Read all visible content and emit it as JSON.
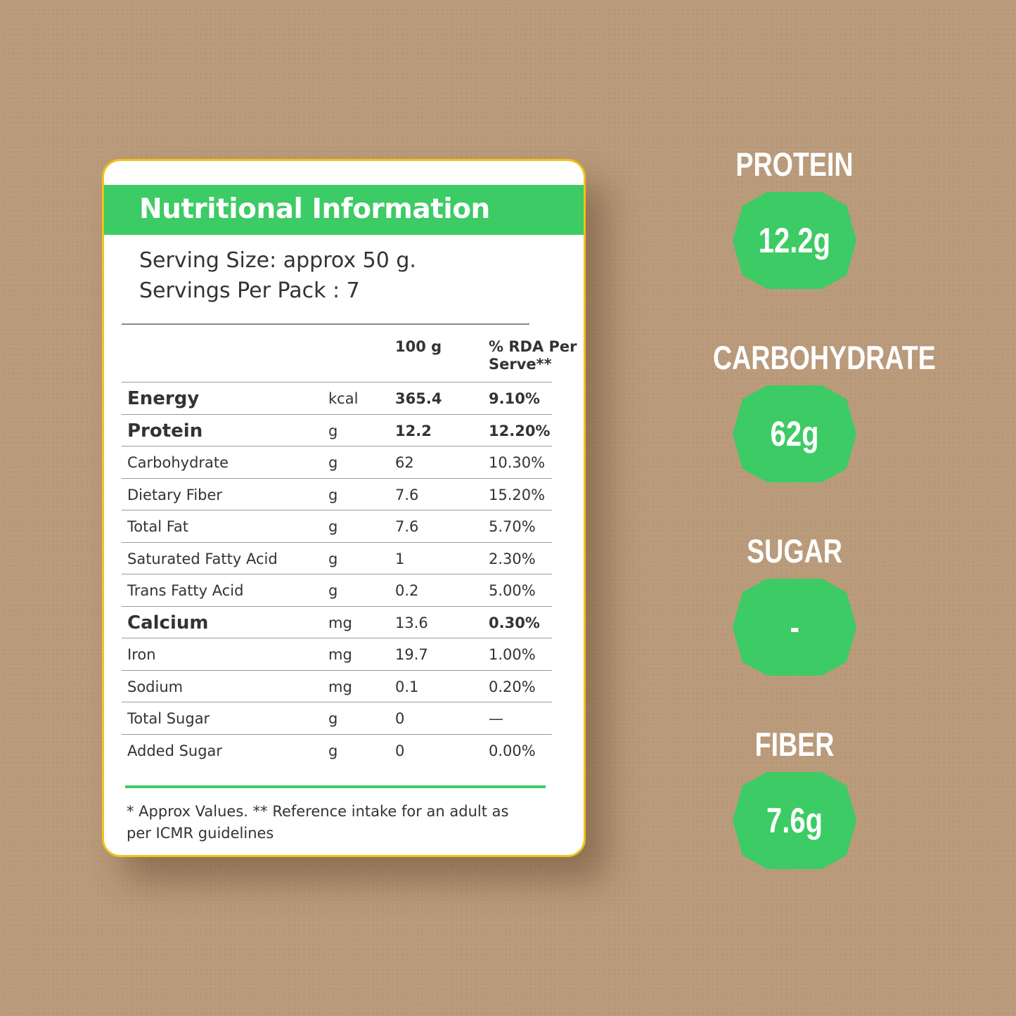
{
  "card": {
    "title": "Nutritional Information",
    "serving_size": "Serving Size: approx 50 g.",
    "servings_per_pack": "Servings Per Pack : 7",
    "col_qty": "100 g",
    "col_rda": "% RDA Per Serve**",
    "rows": [
      {
        "name": "Energy",
        "unit": "kcal",
        "qty": "365.4",
        "rda": "9.10%"
      },
      {
        "name": "Protein",
        "unit": "g",
        "qty": "12.2",
        "rda": "12.20%"
      },
      {
        "name": "Carbohydrate",
        "unit": "g",
        "qty": "62",
        "rda": "10.30%"
      },
      {
        "name": "Dietary Fiber",
        "unit": "g",
        "qty": "7.6",
        "rda": "15.20%"
      },
      {
        "name": "Total Fat",
        "unit": "g",
        "qty": "7.6",
        "rda": "5.70%"
      },
      {
        "name": "Saturated Fatty Acid",
        "unit": "g",
        "qty": "1",
        "rda": "2.30%"
      },
      {
        "name": "Trans Fatty Acid",
        "unit": "g",
        "qty": "0.2",
        "rda": "5.00%"
      },
      {
        "name": "Calcium",
        "unit": "mg",
        "qty": "13.6",
        "rda": "0.30%"
      },
      {
        "name": "Iron",
        "unit": "mg",
        "qty": "19.7",
        "rda": "1.00%"
      },
      {
        "name": "Sodium",
        "unit": "mg",
        "qty": "0.1",
        "rda": "0.20%"
      },
      {
        "name": "Total Sugar",
        "unit": "g",
        "qty": "0",
        "rda": "—"
      },
      {
        "name": "Added Sugar",
        "unit": "g",
        "qty": "0",
        "rda": "0.00%"
      }
    ],
    "footnote": "* Approx Values. ** Reference intake for an adult as per ICMR guidelines"
  },
  "highlights": [
    {
      "label": "PROTEIN",
      "value": "12.2g"
    },
    {
      "label": "CARBOHYDRATE",
      "value": "62g"
    },
    {
      "label": "SUGAR",
      "value": "-"
    },
    {
      "label": "FIBER",
      "value": "7.6g"
    }
  ],
  "colors": {
    "background": "#b99a7a",
    "accent_green": "#3ccb64",
    "card_border": "#f2c21b"
  }
}
